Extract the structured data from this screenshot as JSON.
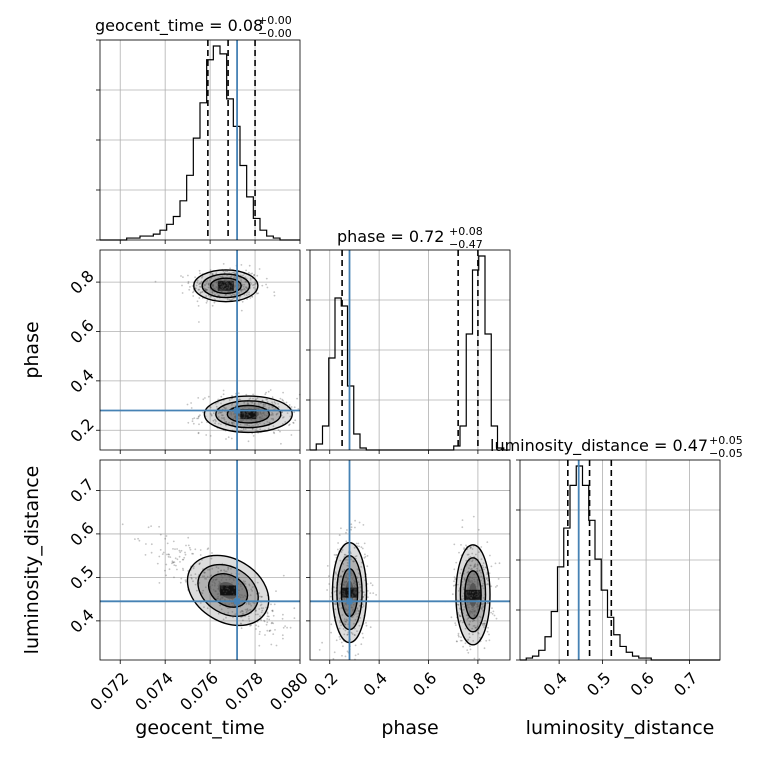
{
  "colors": {
    "truth": "#4682b4",
    "hist": "#000000",
    "grid": "#b0b0b0",
    "points": "#555555",
    "contour": "#000000"
  },
  "chart_data": {
    "type": "scatter",
    "subtype": "corner-plot",
    "grid": true,
    "parameters": [
      "geocent_time",
      "phase",
      "luminosity_distance"
    ],
    "truths": {
      "geocent_time": 0.0772,
      "phase": 0.28,
      "luminosity_distance": 0.445
    },
    "ranges": {
      "geocent_time": [
        0.0711,
        0.08
      ],
      "phase": [
        0.12,
        0.93
      ],
      "luminosity_distance": [
        0.31,
        0.77
      ]
    },
    "titles": [
      {
        "param": "geocent_time",
        "text": "geocent_time = 0.08",
        "plus": "+0.00",
        "minus": "−0.00"
      },
      {
        "param": "phase",
        "text": "phase = 0.72",
        "plus": "+0.08",
        "minus": "−0.47"
      },
      {
        "param": "luminosity_distance",
        "text": "luminosity_distance = 0.47",
        "plus": "+0.05",
        "minus": "−0.05"
      }
    ],
    "quantiles": {
      "geocent_time": [
        0.0759,
        0.0768,
        0.078
      ],
      "phase": [
        0.25,
        0.72,
        0.8
      ],
      "luminosity_distance": [
        0.42,
        0.47,
        0.52
      ]
    },
    "ticks": {
      "geocent_time": [
        "0.072",
        "0.074",
        "0.076",
        "0.078",
        "0.080"
      ],
      "phase": [
        "0.2",
        "0.4",
        "0.6",
        "0.8"
      ],
      "luminosity_distance": [
        "0.4",
        "0.5",
        "0.6",
        "0.7"
      ]
    },
    "tick_values": {
      "geocent_time": [
        0.072,
        0.074,
        0.076,
        0.078,
        0.08
      ],
      "phase": [
        0.2,
        0.4,
        0.6,
        0.8
      ],
      "luminosity_distance": [
        0.4,
        0.5,
        0.6,
        0.7
      ]
    },
    "xlabels": [
      "geocent_time",
      "phase",
      "luminosity_distance"
    ],
    "ylabels": [
      "phase",
      "luminosity_distance"
    ],
    "histograms": {
      "geocent_time": {
        "bins": [
          0.0711,
          0.08
        ],
        "counts": [
          0,
          0,
          0,
          0,
          1,
          1,
          2,
          2,
          3,
          5,
          8,
          12,
          20,
          33,
          52,
          70,
          92,
          99,
          95,
          72,
          58,
          38,
          22,
          11,
          5,
          2,
          1,
          0,
          0,
          0
        ]
      },
      "phase": {
        "bins": [
          0.12,
          0.93
        ],
        "counts": [
          0,
          3,
          12,
          46,
          76,
          72,
          32,
          8,
          1,
          0,
          0,
          0,
          0,
          0,
          0,
          0,
          0,
          0,
          0,
          0,
          0,
          0,
          0,
          2,
          12,
          58,
          90,
          97,
          58,
          12,
          1,
          0
        ]
      },
      "luminosity_distance": {
        "bins": [
          0.31,
          0.77
        ],
        "counts": [
          0,
          1,
          2,
          5,
          12,
          25,
          48,
          68,
          90,
          100,
          90,
          72,
          52,
          36,
          22,
          13,
          7,
          4,
          2,
          1,
          1,
          0,
          0,
          0,
          0,
          0,
          0,
          0,
          0,
          0,
          0,
          0
        ]
      }
    },
    "contour_blobs": {
      "phase_vs_geocent_time": [
        {
          "x": 0.0767,
          "y": 0.785,
          "sx": 0.00062,
          "sy": 0.028,
          "rho": 0.0
        },
        {
          "x": 0.0777,
          "y": 0.265,
          "sx": 0.00085,
          "sy": 0.032,
          "rho": 0.0
        }
      ],
      "luminosity_distance_vs_geocent_time": [
        {
          "x": 0.0768,
          "y": 0.47,
          "sx": 0.0012,
          "sy": 0.045,
          "rho": -0.82
        }
      ],
      "luminosity_distance_vs_phase": [
        {
          "x": 0.28,
          "y": 0.465,
          "sx": 0.03,
          "sy": 0.05,
          "rho": 0.0
        },
        {
          "x": 0.78,
          "y": 0.46,
          "sx": 0.03,
          "sy": 0.05,
          "rho": 0.0
        }
      ]
    }
  }
}
